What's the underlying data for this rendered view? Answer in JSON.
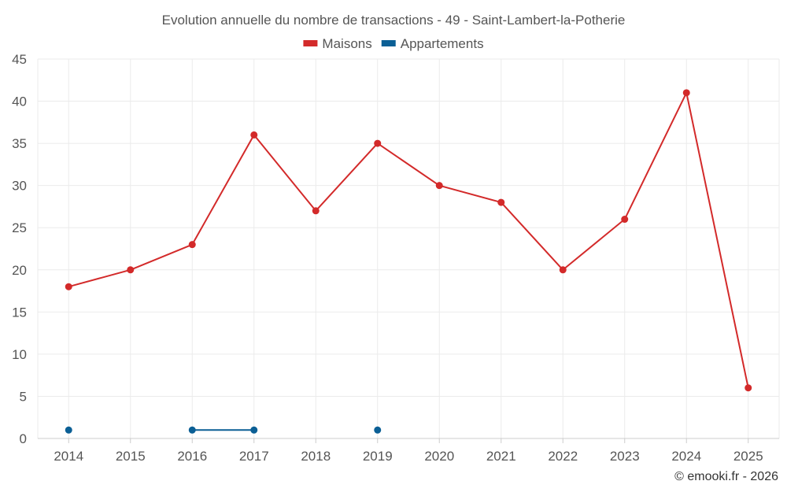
{
  "chart_data": {
    "type": "line",
    "title": "Evolution annuelle du nombre de transactions - 49 - Saint-Lambert-la-Potherie",
    "categories": [
      "2014",
      "2015",
      "2016",
      "2017",
      "2018",
      "2019",
      "2020",
      "2021",
      "2022",
      "2023",
      "2024",
      "2025"
    ],
    "ylim": [
      0,
      45
    ],
    "yticks": [
      0,
      5,
      10,
      15,
      20,
      25,
      30,
      35,
      40,
      45
    ],
    "grid": true,
    "legend_position": "top-center",
    "series": [
      {
        "name": "Maisons",
        "color": "#d32a2a",
        "values": [
          18,
          20,
          23,
          36,
          27,
          35,
          30,
          28,
          20,
          26,
          41,
          6
        ]
      },
      {
        "name": "Appartements",
        "color": "#0b5f95",
        "values": [
          1,
          null,
          1,
          1,
          null,
          1,
          null,
          null,
          null,
          null,
          null,
          null
        ]
      }
    ],
    "credit": "© emooki.fr - 2026"
  }
}
